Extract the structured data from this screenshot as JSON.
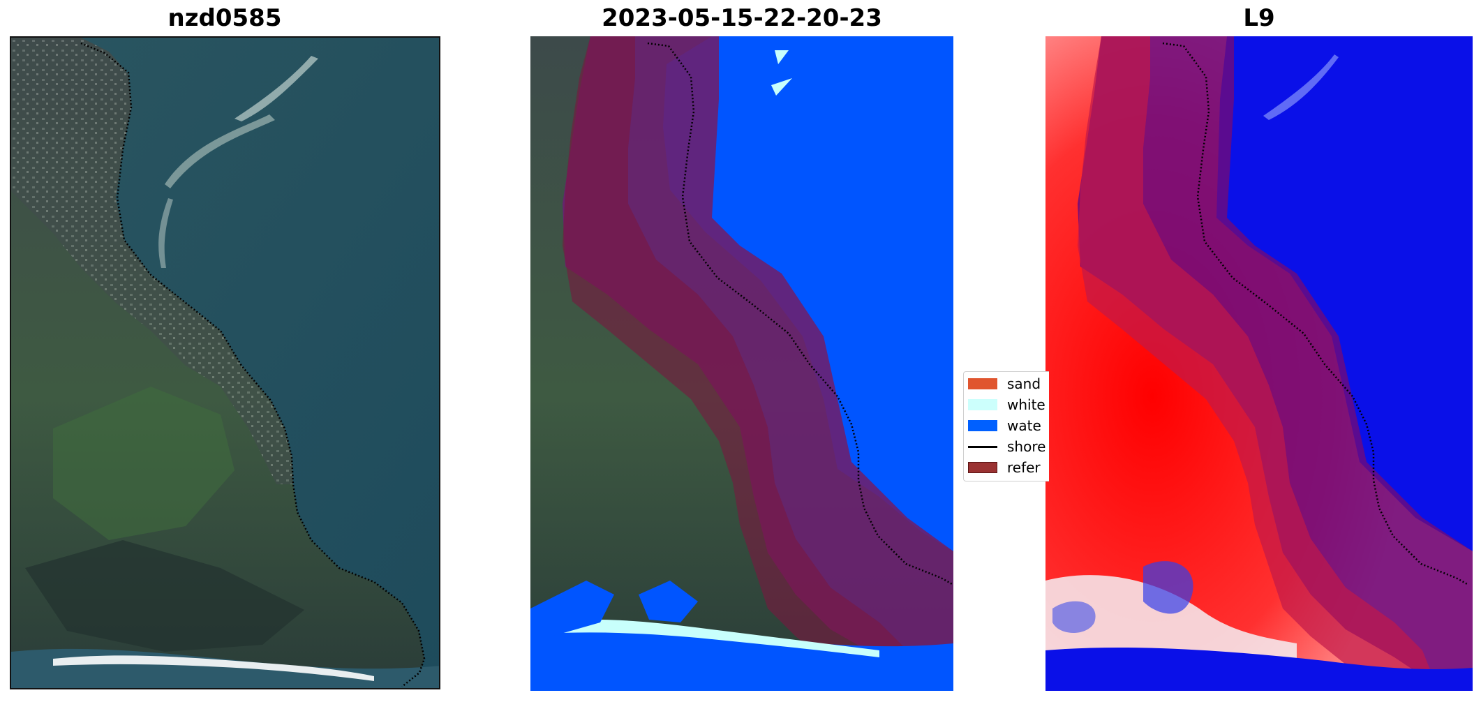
{
  "panels": [
    {
      "title": "nzd0585",
      "kind": "rgb-image"
    },
    {
      "title": "2023-05-15-22-20-23",
      "kind": "classification-map"
    },
    {
      "title": "L9",
      "kind": "index-map"
    }
  ],
  "legend": {
    "items": [
      {
        "label": "sand",
        "color": "#e0552f",
        "type": "patch"
      },
      {
        "label": "white",
        "color": "#ccfffc",
        "type": "patch"
      },
      {
        "label": "wate",
        "color": "#0060ff",
        "type": "patch"
      },
      {
        "label": "shore",
        "color": "#000000",
        "type": "line"
      },
      {
        "label": "refer",
        "color": "#9a3232",
        "type": "patch"
      }
    ]
  },
  "colors": {
    "water": "#0055ff",
    "whitewater": "#c8fffc",
    "reference_buffer": "#6a0a50",
    "shoreline": "#000000",
    "index_positive": "#ff0000",
    "index_negative": "#0a10e8"
  }
}
